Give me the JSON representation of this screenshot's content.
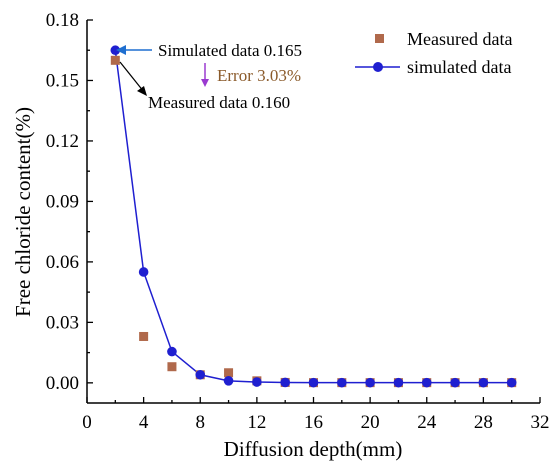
{
  "chart_data": {
    "type": "scatter",
    "xlabel": "Diffusion depth(mm)",
    "ylabel": "Free chloride content(%)",
    "xlim": [
      0,
      32
    ],
    "ylim": [
      -0.01,
      0.18
    ],
    "xticks": [
      0,
      4,
      8,
      12,
      16,
      20,
      24,
      28,
      32
    ],
    "yticks": [
      0.0,
      0.03,
      0.06,
      0.09,
      0.12,
      0.15,
      0.18
    ],
    "legend_position": "top-right",
    "grid": false,
    "series": [
      {
        "name": "Measured data",
        "kind": "scatter",
        "marker": "square",
        "color": "#b0694b",
        "x": [
          2,
          4,
          6,
          8,
          10,
          12,
          14,
          16,
          18,
          20,
          22,
          24,
          26,
          28,
          30
        ],
        "y": [
          0.16,
          0.023,
          0.008,
          0.004,
          0.005,
          0.001,
          0.0002,
          0.0001,
          0.0001,
          0.0001,
          0.0001,
          0.0001,
          0.0001,
          0.0001,
          0.0001
        ]
      },
      {
        "name": "simulated data",
        "kind": "line",
        "marker": "circle",
        "color": "#1f1fd0",
        "x": [
          2,
          4,
          6,
          8,
          10,
          12,
          14,
          16,
          18,
          20,
          22,
          24,
          26,
          28,
          30
        ],
        "y": [
          0.165,
          0.055,
          0.0155,
          0.004,
          0.001,
          0.0004,
          0.0002,
          0.0001,
          0.0001,
          0.0001,
          0.0001,
          0.0001,
          0.0001,
          0.0001,
          0.0001
        ]
      }
    ],
    "annotations": [
      {
        "text": "Simulated data 0.165",
        "color": "#000000"
      },
      {
        "text": "Error 3.03%",
        "color": "#8a5a2a",
        "arrow_color": "#9a3ad0"
      },
      {
        "text": "Measured data  0.160",
        "color": "#000000"
      }
    ]
  }
}
